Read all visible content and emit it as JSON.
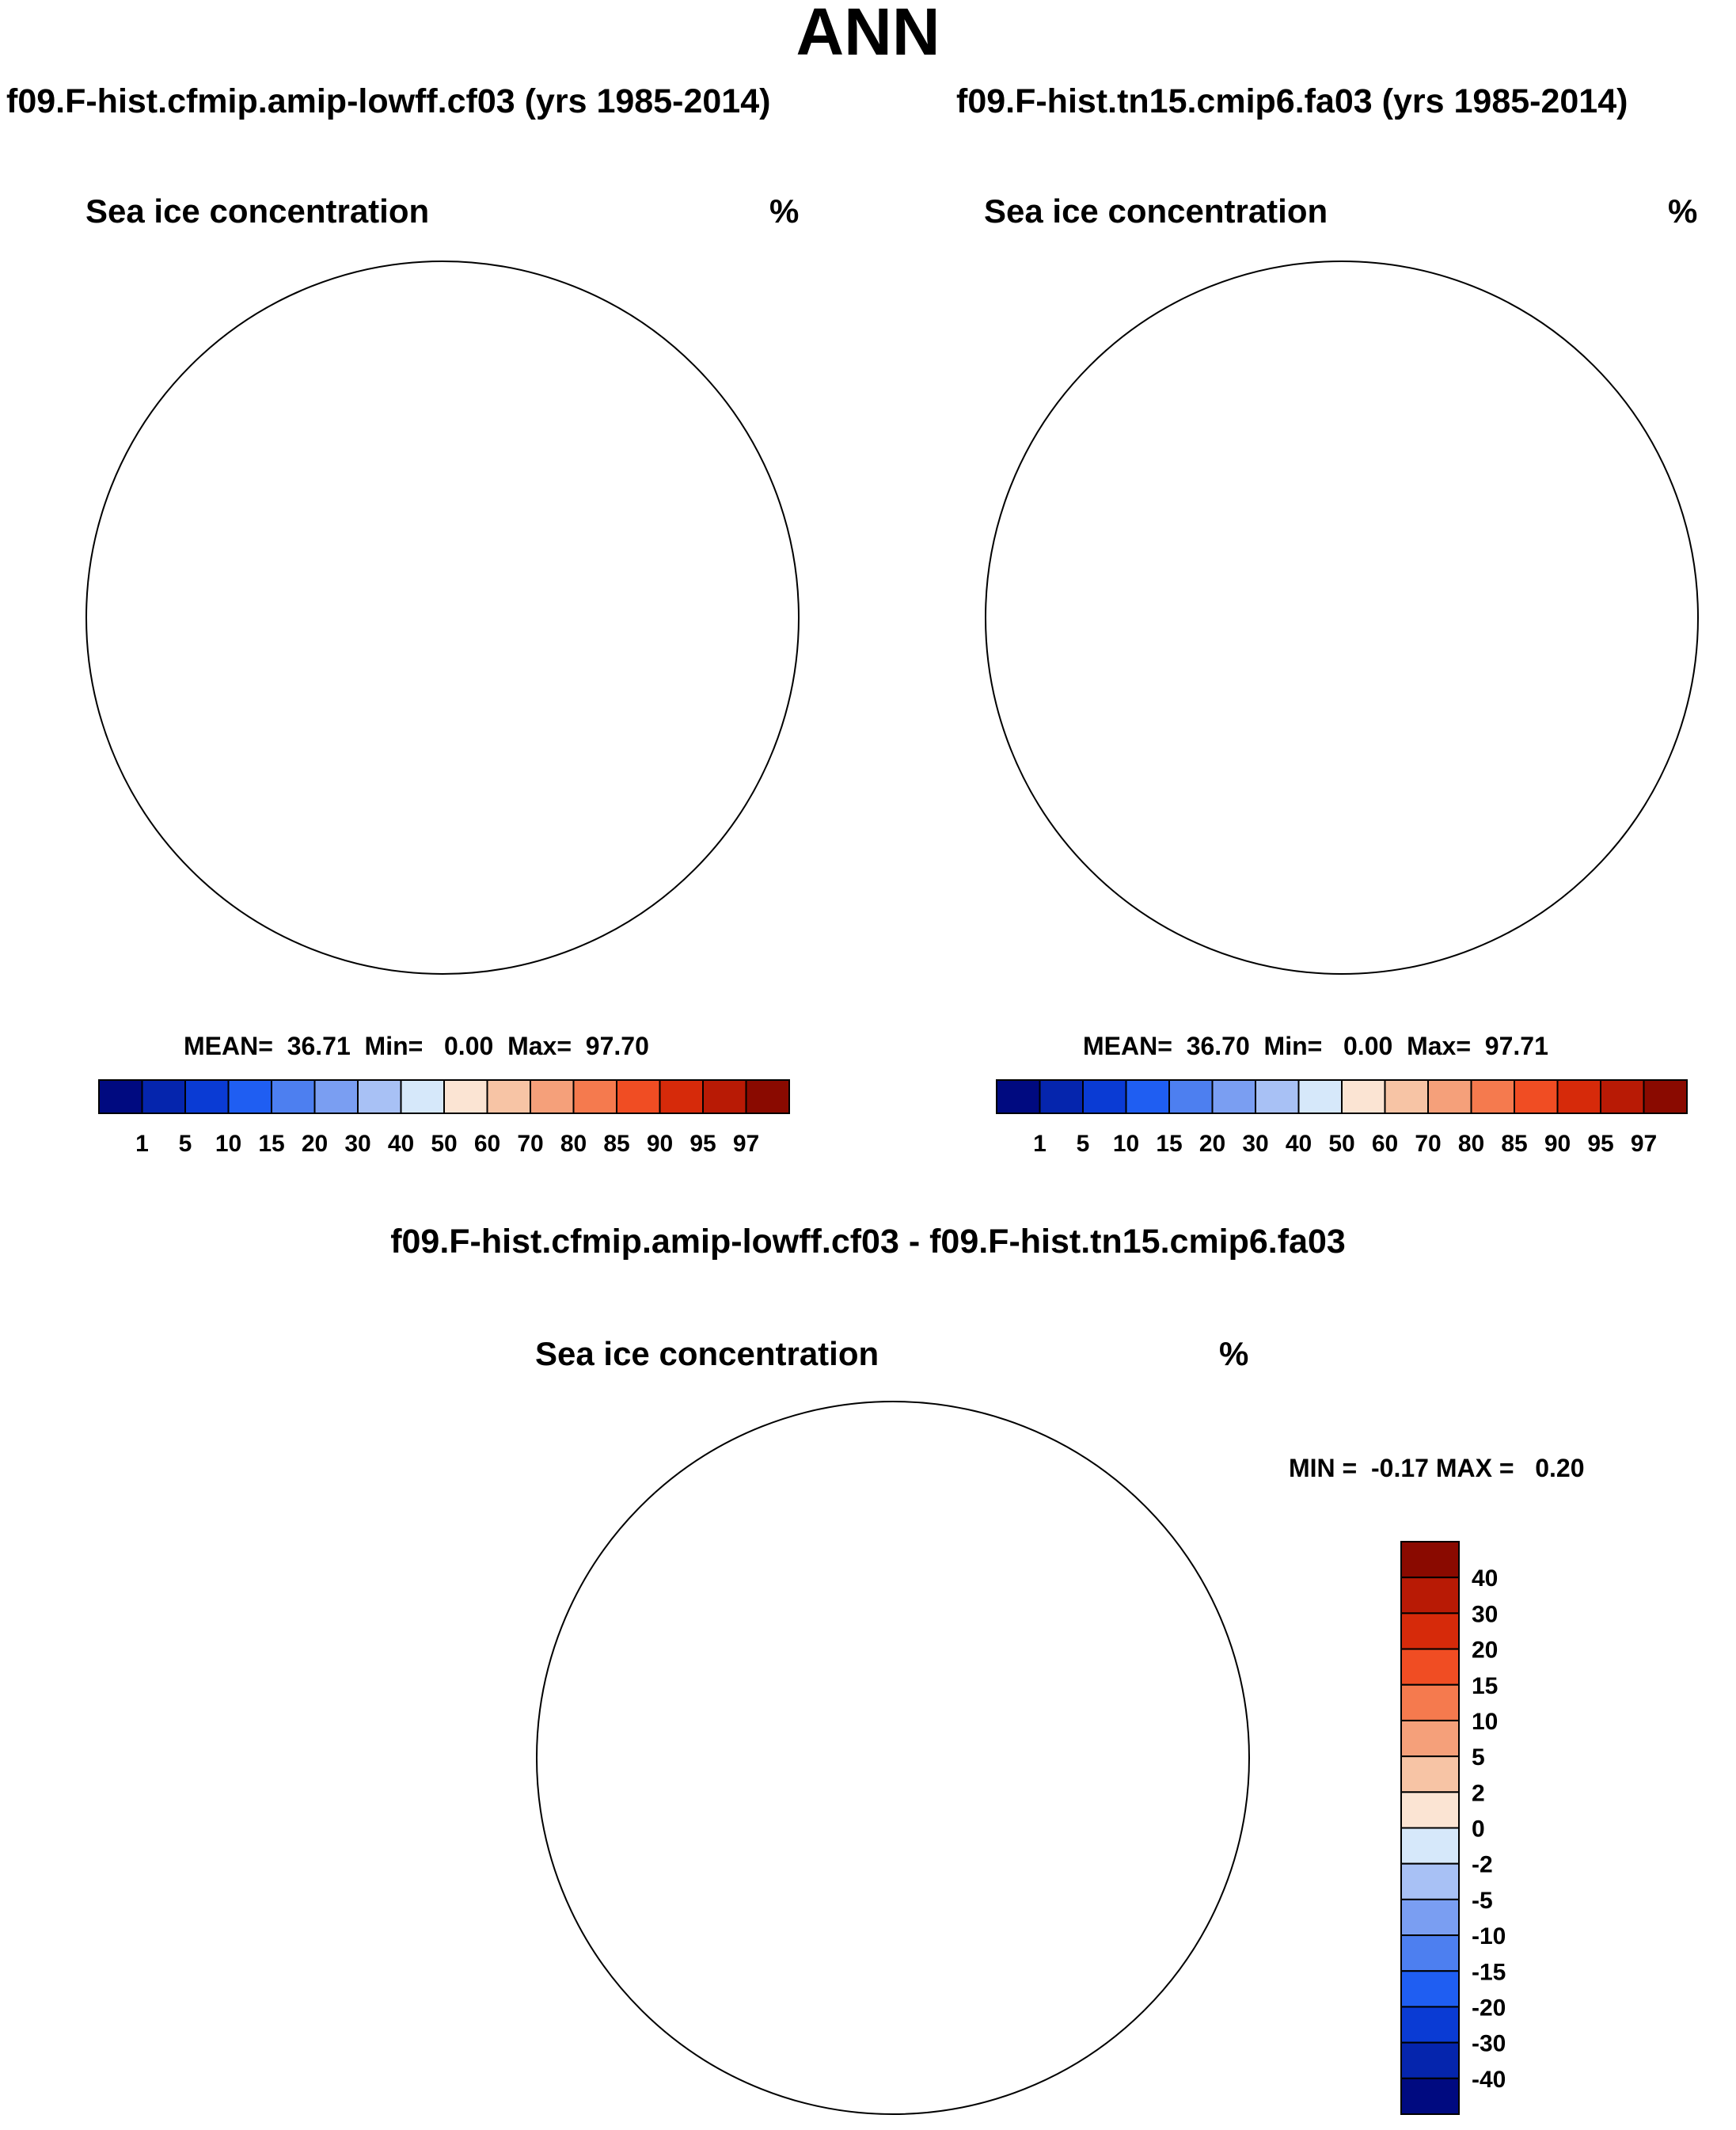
{
  "title": "ANN",
  "panels": [
    {
      "id": "case1",
      "case_title": "f09.F-hist.cfmip.amip-lowff.cf03 (yrs 1985-2014)",
      "variable": "Sea ice concentration",
      "units": "%",
      "stats": "MEAN=  36.71  Min=   0.00  Max=  97.70"
    },
    {
      "id": "case2",
      "case_title": "f09.F-hist.tn15.cmip6.fa03 (yrs 1985-2014)",
      "variable": "Sea ice concentration",
      "units": "%",
      "stats": "MEAN=  36.70  Min=   0.00  Max=  97.71"
    }
  ],
  "diff_panel": {
    "title": "f09.F-hist.cfmip.amip-lowff.cf03 - f09.F-hist.tn15.cmip6.fa03",
    "variable": "Sea ice concentration",
    "units": "%",
    "stats": "MIN =  -0.17 MAX =   0.20"
  },
  "colorbar_abs": {
    "labels": [
      "1",
      "5",
      "10",
      "15",
      "20",
      "30",
      "40",
      "50",
      "60",
      "70",
      "80",
      "85",
      "90",
      "95",
      "97"
    ],
    "colors": [
      "#000a80",
      "#0525ad",
      "#0a3bd4",
      "#1f5ef2",
      "#4d7ff0",
      "#7a9ef2",
      "#a8c1f5",
      "#d6e8fa",
      "#fbe4d3",
      "#f7c4a5",
      "#f5a07a",
      "#f57a4e",
      "#f04d23",
      "#d62a0a",
      "#b81a05",
      "#8a0a00"
    ]
  },
  "colorbar_diff": {
    "labels": [
      "40",
      "30",
      "20",
      "15",
      "10",
      "5",
      "2",
      "0",
      "-2",
      "-5",
      "-10",
      "-15",
      "-20",
      "-30",
      "-40"
    ],
    "colors": [
      "#8a0a00",
      "#b81a05",
      "#d62a0a",
      "#f04d23",
      "#f57a4e",
      "#f5a07a",
      "#f7c4a5",
      "#fbe4d3",
      "#d6e8fa",
      "#a8c1f5",
      "#7a9ef2",
      "#4d7ff0",
      "#1f5ef2",
      "#0a3bd4",
      "#0525ad",
      "#000a80"
    ]
  }
}
